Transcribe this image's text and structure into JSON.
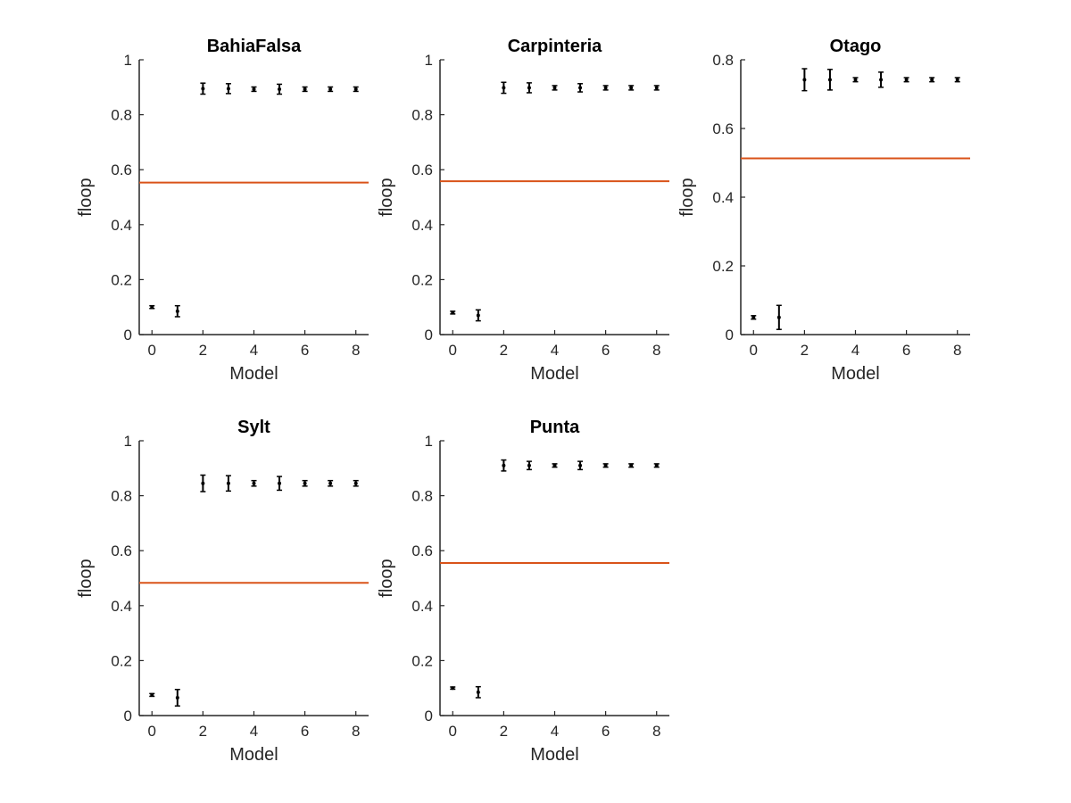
{
  "chart_data": [
    {
      "type": "scatter",
      "title": "BahiaFalsa",
      "xlabel": "Model",
      "ylabel": "floop",
      "xlim": [
        -0.5,
        8.5
      ],
      "ylim": [
        0,
        1
      ],
      "xticks": [
        0,
        2,
        4,
        6,
        8
      ],
      "yticks": [
        0,
        0.2,
        0.4,
        0.6,
        0.8,
        1
      ],
      "ytick_labels": [
        "0",
        "0.2",
        "0.4",
        "0.6",
        "0.8",
        "1"
      ],
      "reference_line": 0.553,
      "points": [
        {
          "x": 0,
          "y": 0.1,
          "err": 0.005
        },
        {
          "x": 1,
          "y": 0.085,
          "err": 0.02
        },
        {
          "x": 2,
          "y": 0.895,
          "err": 0.02
        },
        {
          "x": 3,
          "y": 0.895,
          "err": 0.018
        },
        {
          "x": 4,
          "y": 0.893,
          "err": 0.008
        },
        {
          "x": 5,
          "y": 0.893,
          "err": 0.018
        },
        {
          "x": 6,
          "y": 0.893,
          "err": 0.008
        },
        {
          "x": 7,
          "y": 0.893,
          "err": 0.008
        },
        {
          "x": 8,
          "y": 0.893,
          "err": 0.008
        }
      ]
    },
    {
      "type": "scatter",
      "title": "Carpinteria",
      "xlabel": "Model",
      "ylabel": "floop",
      "xlim": [
        -0.5,
        8.5
      ],
      "ylim": [
        0,
        1
      ],
      "xticks": [
        0,
        2,
        4,
        6,
        8
      ],
      "yticks": [
        0,
        0.2,
        0.4,
        0.6,
        0.8,
        1
      ],
      "ytick_labels": [
        "0",
        "0.2",
        "0.4",
        "0.6",
        "0.8",
        "1"
      ],
      "reference_line": 0.558,
      "points": [
        {
          "x": 0,
          "y": 0.08,
          "err": 0.005
        },
        {
          "x": 1,
          "y": 0.07,
          "err": 0.02
        },
        {
          "x": 2,
          "y": 0.898,
          "err": 0.02
        },
        {
          "x": 3,
          "y": 0.898,
          "err": 0.018
        },
        {
          "x": 4,
          "y": 0.898,
          "err": 0.008
        },
        {
          "x": 5,
          "y": 0.898,
          "err": 0.015
        },
        {
          "x": 6,
          "y": 0.898,
          "err": 0.008
        },
        {
          "x": 7,
          "y": 0.898,
          "err": 0.008
        },
        {
          "x": 8,
          "y": 0.898,
          "err": 0.008
        }
      ]
    },
    {
      "type": "scatter",
      "title": "Otago",
      "xlabel": "Model",
      "ylabel": "floop",
      "xlim": [
        -0.5,
        8.5
      ],
      "ylim": [
        0,
        0.8
      ],
      "xticks": [
        0,
        2,
        4,
        6,
        8
      ],
      "yticks": [
        0,
        0.2,
        0.4,
        0.6,
        0.8
      ],
      "ytick_labels": [
        "0",
        "0.2",
        "0.4",
        "0.6",
        "0.8"
      ],
      "reference_line": 0.513,
      "points": [
        {
          "x": 0,
          "y": 0.05,
          "err": 0.005
        },
        {
          "x": 1,
          "y": 0.05,
          "err": 0.035
        },
        {
          "x": 2,
          "y": 0.742,
          "err": 0.032
        },
        {
          "x": 3,
          "y": 0.742,
          "err": 0.03
        },
        {
          "x": 4,
          "y": 0.742,
          "err": 0.006
        },
        {
          "x": 5,
          "y": 0.742,
          "err": 0.022
        },
        {
          "x": 6,
          "y": 0.742,
          "err": 0.006
        },
        {
          "x": 7,
          "y": 0.742,
          "err": 0.006
        },
        {
          "x": 8,
          "y": 0.742,
          "err": 0.006
        }
      ]
    },
    {
      "type": "scatter",
      "title": "Sylt",
      "xlabel": "Model",
      "ylabel": "floop",
      "xlim": [
        -0.5,
        8.5
      ],
      "ylim": [
        0,
        1
      ],
      "xticks": [
        0,
        2,
        4,
        6,
        8
      ],
      "yticks": [
        0,
        0.2,
        0.4,
        0.6,
        0.8,
        1
      ],
      "ytick_labels": [
        "0",
        "0.2",
        "0.4",
        "0.6",
        "0.8",
        "1"
      ],
      "reference_line": 0.483,
      "points": [
        {
          "x": 0,
          "y": 0.075,
          "err": 0.005
        },
        {
          "x": 1,
          "y": 0.065,
          "err": 0.03
        },
        {
          "x": 2,
          "y": 0.845,
          "err": 0.03
        },
        {
          "x": 3,
          "y": 0.845,
          "err": 0.028
        },
        {
          "x": 4,
          "y": 0.845,
          "err": 0.01
        },
        {
          "x": 5,
          "y": 0.845,
          "err": 0.025
        },
        {
          "x": 6,
          "y": 0.845,
          "err": 0.01
        },
        {
          "x": 7,
          "y": 0.845,
          "err": 0.01
        },
        {
          "x": 8,
          "y": 0.845,
          "err": 0.01
        }
      ]
    },
    {
      "type": "scatter",
      "title": "Punta",
      "xlabel": "Model",
      "ylabel": "floop",
      "xlim": [
        -0.5,
        8.5
      ],
      "ylim": [
        0,
        1
      ],
      "xticks": [
        0,
        2,
        4,
        6,
        8
      ],
      "yticks": [
        0,
        0.2,
        0.4,
        0.6,
        0.8,
        1
      ],
      "ytick_labels": [
        "0",
        "0.2",
        "0.4",
        "0.6",
        "0.8",
        "1"
      ],
      "reference_line": 0.555,
      "points": [
        {
          "x": 0,
          "y": 0.1,
          "err": 0.004
        },
        {
          "x": 1,
          "y": 0.085,
          "err": 0.02
        },
        {
          "x": 2,
          "y": 0.91,
          "err": 0.02
        },
        {
          "x": 3,
          "y": 0.91,
          "err": 0.015
        },
        {
          "x": 4,
          "y": 0.91,
          "err": 0.006
        },
        {
          "x": 5,
          "y": 0.91,
          "err": 0.015
        },
        {
          "x": 6,
          "y": 0.91,
          "err": 0.006
        },
        {
          "x": 7,
          "y": 0.91,
          "err": 0.006
        },
        {
          "x": 8,
          "y": 0.91,
          "err": 0.006
        }
      ]
    }
  ],
  "colors": {
    "reference_line": "#d95319",
    "markers": "#000000",
    "axes": "#262626"
  }
}
